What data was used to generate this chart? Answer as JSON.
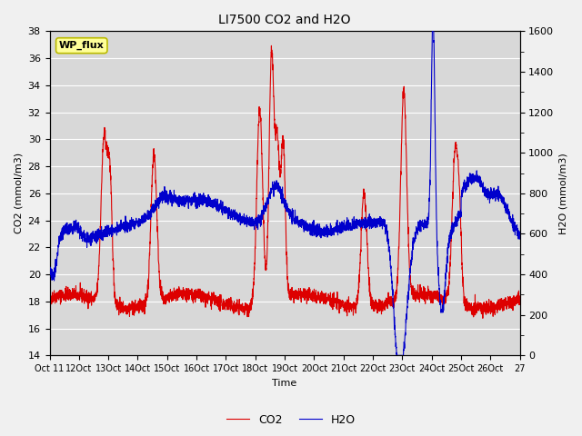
{
  "title": "LI7500 CO2 and H2O",
  "xlabel": "Time",
  "ylabel_left": "CO2 (mmol/m3)",
  "ylabel_right": "H2O (mmol/m3)",
  "xlim": [
    0,
    16
  ],
  "ylim_left": [
    14,
    38
  ],
  "ylim_right": [
    0,
    1600
  ],
  "xtick_labels": [
    "Oct 11",
    "12Oct",
    "13Oct",
    "14Oct",
    "15Oct",
    "16Oct",
    "17Oct",
    "18Oct",
    "19Oct",
    "20Oct",
    "21Oct",
    "22Oct",
    "23Oct",
    "24Oct",
    "25Oct",
    "26Oct",
    "27"
  ],
  "xtick_positions": [
    0,
    1,
    2,
    3,
    4,
    5,
    6,
    7,
    8,
    9,
    10,
    11,
    12,
    13,
    14,
    15,
    16
  ],
  "label_box_text": "WP_flux",
  "label_box_facecolor": "#ffff99",
  "label_box_edgecolor": "#bbbb00",
  "co2_color": "#dd0000",
  "h2o_color": "#0000cc",
  "plot_bg_color": "#d8d8d8",
  "fig_bg_color": "#f0f0f0",
  "grid_color": "#ffffff",
  "legend_co2": "CO2",
  "legend_h2o": "H2O"
}
